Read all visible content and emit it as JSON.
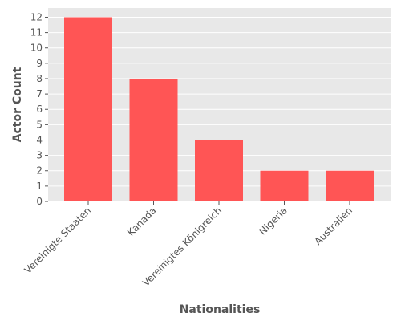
{
  "chart_data": {
    "type": "bar",
    "categories": [
      "Vereinigte Staaten",
      "Kanada",
      "Vereinigtes Königreich",
      "Nigeria",
      "Australien"
    ],
    "values": [
      12,
      8,
      4,
      2,
      2
    ],
    "title": "",
    "xlabel": "Nationalities",
    "ylabel": "Actor Count",
    "ylim": [
      0,
      12.6
    ],
    "yticks": [
      0,
      1,
      2,
      3,
      4,
      5,
      6,
      7,
      8,
      9,
      10,
      11,
      12
    ],
    "grid": true,
    "legend": "none",
    "colors": {
      "bar": "#ff5555",
      "plot_background": "#e8e8e8",
      "grid": "#ffffff",
      "text": "#555555"
    }
  }
}
